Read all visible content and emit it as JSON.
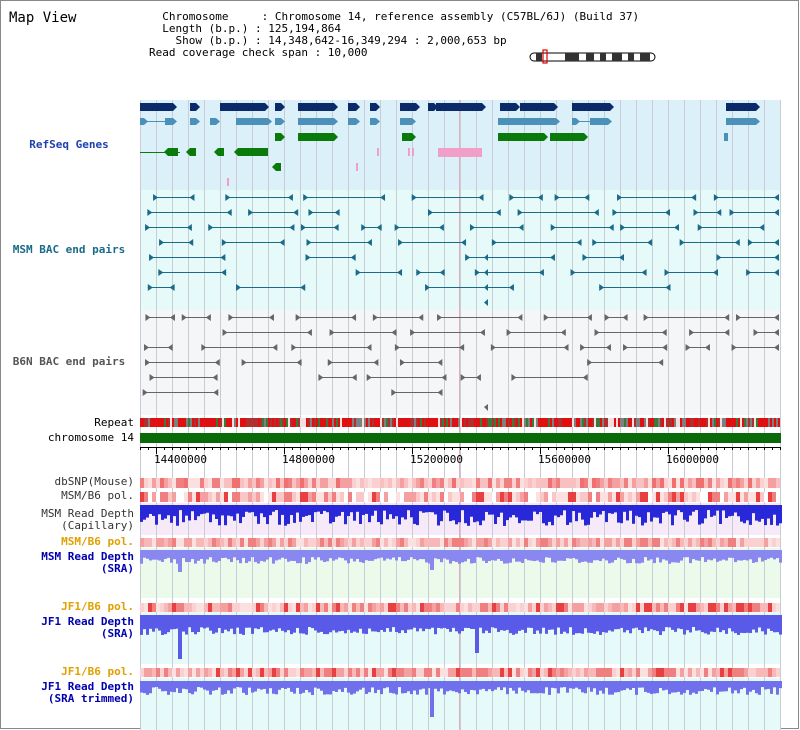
{
  "title": "Map View",
  "info": {
    "lines": [
      "  Chromosome     : Chromosome 14, reference assembly (C57BL/6J) (Build 37)",
      "  Length (b.p.) : 125,194,864",
      "    Show (b.p.) : 14,348,642-16,349,294 : 2,000,653 bp",
      "Read coverage check span : 10,000"
    ]
  },
  "tracks": {
    "refseq": "RefSeq Genes",
    "msm_bac": "MSM BAC end pairs",
    "b6n_bac": "B6N BAC end pairs",
    "repeat": "Repeat",
    "chromosome": "chromosome 14",
    "dbsnp": "dbSNP(Mouse)",
    "msm_b6_pol": "MSM/B6 pol.",
    "msm_depth_cap_1": "MSM Read Depth",
    "msm_depth_cap_2": "(Capillary)",
    "msm_b6_pol2": "MSM/B6 pol.",
    "msm_depth_sra_1": "MSM Read Depth",
    "msm_depth_sra_2": "(SRA)",
    "jf1_b6_pol": "JF1/B6 pol.",
    "jf1_depth_sra_1": "JF1 Read Depth",
    "jf1_depth_sra_2": "(SRA)",
    "jf1_b6_pol2": "JF1/B6 pol.",
    "jf1_depth_trim_1": "JF1 Read Depth",
    "jf1_depth_trim_2": "(SRA trimmed)"
  },
  "axis": {
    "ticks": [
      "14400000",
      "14800000",
      "15200000",
      "15600000",
      "16000000"
    ]
  },
  "colors": {
    "refseq_bg": "#dcf0fa",
    "msm_bg": "#e6fafa",
    "b6n_bg": "#f4f6f8",
    "chromosome": "#0a6a0a",
    "refseq_navy": "#0a2a6a",
    "refseq_steel": "#4a90b8",
    "refseq_green": "#0a7a0a",
    "refseq_pink": "#f0a0c8"
  }
}
